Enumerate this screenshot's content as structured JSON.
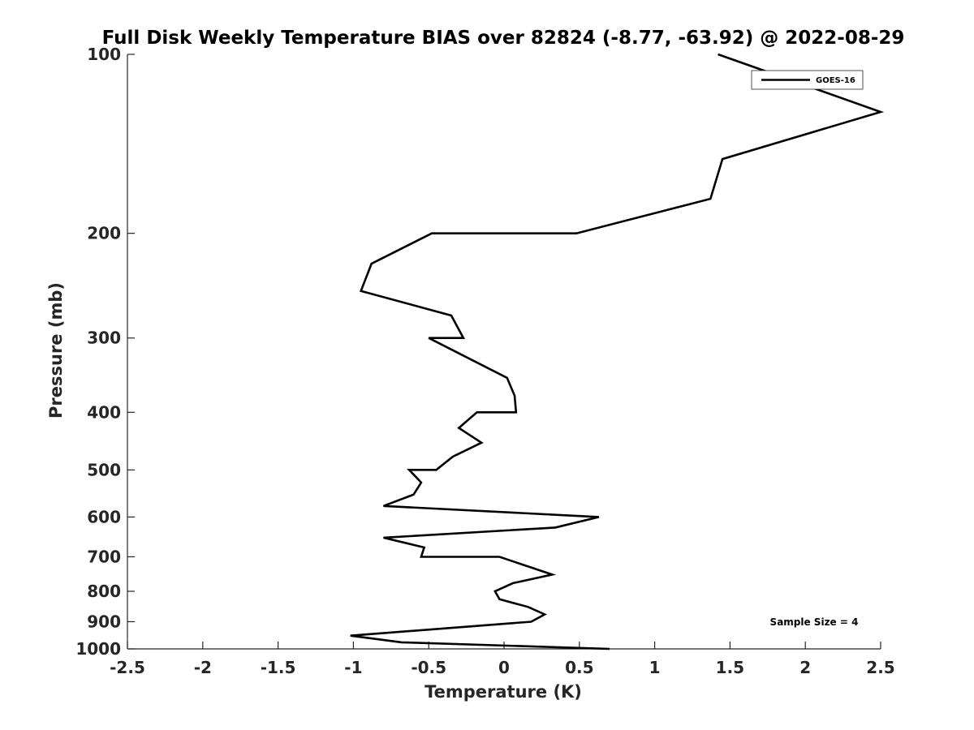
{
  "chart_data": {
    "type": "line",
    "title": "Full Disk Weekly Temperature BIAS over 82824 (-8.77, -63.92) @ 2022-08-29",
    "xlabel": "Temperature (K)",
    "ylabel": "Pressure (mb)",
    "xlim": [
      -2.5,
      2.5
    ],
    "ylim": [
      1000,
      100
    ],
    "y_scale": "log",
    "y_reversed": true,
    "grid": false,
    "x_ticks": [
      -2.5,
      -2,
      -1.5,
      -1,
      -0.5,
      0,
      0.5,
      1,
      1.5,
      2,
      2.5
    ],
    "x_tick_labels": [
      "-2.5",
      "-2",
      "-1.5",
      "-1",
      "-0.5",
      "0",
      "0.5",
      "1",
      "1.5",
      "2",
      "2.5"
    ],
    "y_ticks": [
      100,
      200,
      300,
      400,
      500,
      600,
      700,
      800,
      900,
      1000
    ],
    "y_tick_labels": [
      "100",
      "200",
      "300",
      "400",
      "500",
      "600",
      "700",
      "800",
      "900",
      "1000"
    ],
    "legend_position": "top-right",
    "annotation": "Sample Size = 4",
    "series": [
      {
        "name": "GOES-16",
        "color": "#000000",
        "points": [
          {
            "t": 1.42,
            "p": 100
          },
          {
            "t": 2.5,
            "p": 125
          },
          {
            "t": 1.45,
            "p": 150
          },
          {
            "t": 1.37,
            "p": 175
          },
          {
            "t": 0.48,
            "p": 200
          },
          {
            "t": -0.48,
            "p": 200
          },
          {
            "t": -0.88,
            "p": 225
          },
          {
            "t": -0.95,
            "p": 250
          },
          {
            "t": -0.35,
            "p": 275
          },
          {
            "t": -0.27,
            "p": 300
          },
          {
            "t": -0.5,
            "p": 300
          },
          {
            "t": 0.02,
            "p": 350
          },
          {
            "t": 0.02,
            "p": 350
          },
          {
            "t": 0.07,
            "p": 375
          },
          {
            "t": 0.08,
            "p": 400
          },
          {
            "t": -0.18,
            "p": 400
          },
          {
            "t": -0.3,
            "p": 425
          },
          {
            "t": -0.15,
            "p": 450
          },
          {
            "t": -0.34,
            "p": 475
          },
          {
            "t": -0.45,
            "p": 500
          },
          {
            "t": -0.63,
            "p": 500
          },
          {
            "t": -0.55,
            "p": 525
          },
          {
            "t": -0.6,
            "p": 550
          },
          {
            "t": -0.8,
            "p": 575
          },
          {
            "t": 0.63,
            "p": 600
          },
          {
            "t": 0.34,
            "p": 625
          },
          {
            "t": -0.8,
            "p": 650
          },
          {
            "t": -0.53,
            "p": 675
          },
          {
            "t": -0.55,
            "p": 700
          },
          {
            "t": -0.03,
            "p": 700
          },
          {
            "t": 0.32,
            "p": 750
          },
          {
            "t": 0.06,
            "p": 775
          },
          {
            "t": -0.06,
            "p": 800
          },
          {
            "t": -0.03,
            "p": 825
          },
          {
            "t": 0.16,
            "p": 850
          },
          {
            "t": 0.27,
            "p": 875
          },
          {
            "t": 0.18,
            "p": 900
          },
          {
            "t": -1.02,
            "p": 950
          },
          {
            "t": -0.68,
            "p": 975
          },
          {
            "t": 0.7,
            "p": 1000
          }
        ]
      }
    ]
  }
}
